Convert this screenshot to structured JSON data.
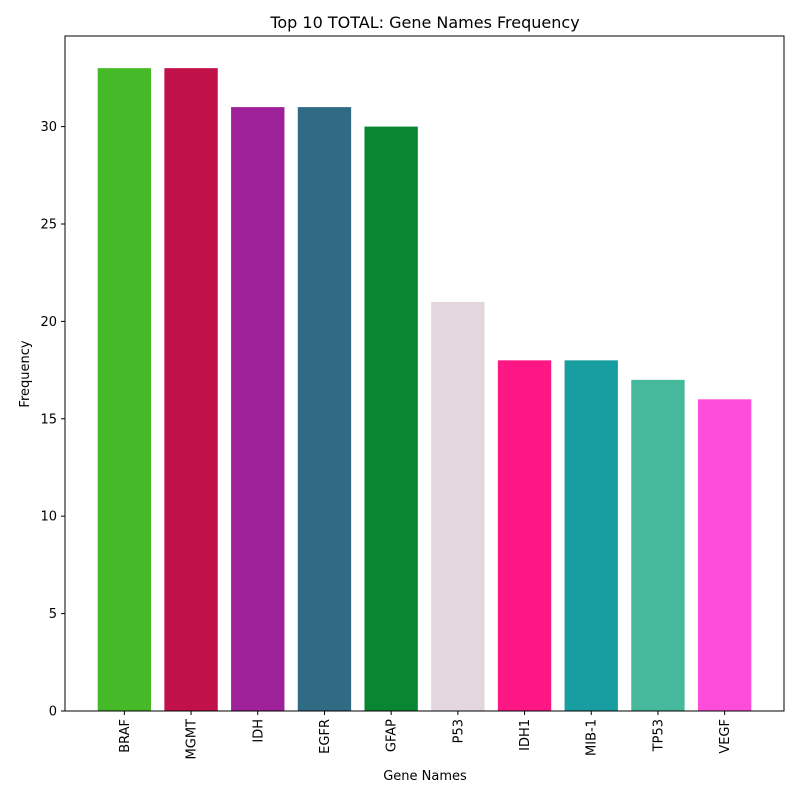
{
  "chart_data": {
    "type": "bar",
    "title": "Top 10 TOTAL: Gene Names Frequency",
    "xlabel": "Gene Names",
    "ylabel": "Frequency",
    "categories": [
      "BRAF",
      "MGMT",
      "IDH",
      "EGFR",
      "GFAP",
      "P53",
      "IDH1",
      "MIB-1",
      "TP53",
      "VEGF"
    ],
    "values": [
      33,
      33,
      31,
      31,
      30,
      21,
      18,
      18,
      17,
      16
    ],
    "colors": [
      "#46b929",
      "#c01148",
      "#9e2199",
      "#306b86",
      "#098632",
      "#e3d6de",
      "#fd1784",
      "#189ea0",
      "#46b99d",
      "#fe4cdb"
    ],
    "ylim": [
      0,
      34.65
    ],
    "yticks": [
      0,
      5,
      10,
      15,
      20,
      25,
      30
    ],
    "grid": false,
    "legend": "none"
  }
}
